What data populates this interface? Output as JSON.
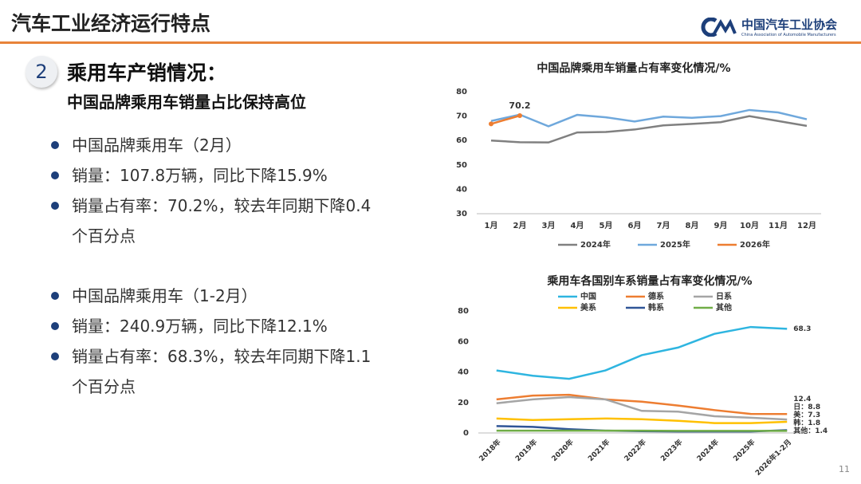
{
  "header": {
    "title": "汽车工业经济运行特点",
    "logo_name": "中国汽车工业协会",
    "logo_english": "China Association of Automobile Manufacturers"
  },
  "section": {
    "number": "2",
    "title": "乘用车产销情况：",
    "subtitle": "中国品牌乘用车销量占比保持高位"
  },
  "bullets": [
    [
      "中国品牌乘用车（2月）",
      "销量：107.8万辆，同比下降15.9%",
      "销量占有率：70.2%，较去年同期下降0.4个百分点"
    ],
    [
      "中国品牌乘用车（1-2月）",
      "销量：240.9万辆，同比下降12.1%",
      "销量占有率：68.3%，较去年同期下降1.1个百分点"
    ]
  ],
  "page_number": "11",
  "chart_data": [
    {
      "type": "line",
      "title": "中国品牌乘用车销量占有率变化情况/%",
      "categories": [
        "1月",
        "2月",
        "3月",
        "4月",
        "5月",
        "6月",
        "7月",
        "8月",
        "9月",
        "10月",
        "11月",
        "12月"
      ],
      "series": [
        {
          "name": "2024年",
          "color": "#808080",
          "values": [
            60,
            59.3,
            59.2,
            63.3,
            63.5,
            64.5,
            66.2,
            66.8,
            67.5,
            70,
            68,
            66
          ]
        },
        {
          "name": "2025年",
          "color": "#6fa8dc",
          "values": [
            68,
            70.6,
            65.8,
            70.5,
            69.5,
            67.8,
            69.8,
            69.3,
            70,
            72.5,
            71.5,
            68.7
          ]
        },
        {
          "name": "2026年",
          "color": "#ed7d31",
          "markers": true,
          "values": [
            66.8,
            70.2,
            null,
            null,
            null,
            null,
            null,
            null,
            null,
            null,
            null,
            null
          ],
          "value_labels": [
            null,
            "70.2",
            null,
            null,
            null,
            null,
            null,
            null,
            null,
            null,
            null,
            null
          ]
        }
      ],
      "ylim": [
        30,
        80
      ],
      "yticks": [
        30,
        40,
        50,
        60,
        70,
        80
      ],
      "legend": "bottom"
    },
    {
      "type": "line",
      "title": "乘用车各国别车系销量占有率变化情况/%",
      "categories": [
        "2018年",
        "2019年",
        "2020年",
        "2021年",
        "2022年",
        "2023年",
        "2024年",
        "2025年",
        "2026年1-2月"
      ],
      "series": [
        {
          "name": "中国",
          "color": "#2eb5e0",
          "values": [
            41,
            37.5,
            35.5,
            41,
            51,
            56,
            65,
            69.5,
            68.3
          ],
          "value_labels": [
            null,
            null,
            null,
            null,
            null,
            null,
            null,
            null,
            "68.3"
          ]
        },
        {
          "name": "德系",
          "color": "#ed7d31",
          "values": [
            22,
            24.5,
            25,
            22,
            20.5,
            18,
            15,
            12.5,
            12.4
          ],
          "value_labels": [
            null,
            null,
            null,
            null,
            null,
            null,
            null,
            null,
            "12.4"
          ]
        },
        {
          "name": "日系",
          "color": "#a5a5a5",
          "values": [
            19.5,
            22,
            23.5,
            22,
            14.5,
            14,
            11,
            10,
            8.8
          ],
          "value_labels": [
            null,
            null,
            null,
            null,
            null,
            null,
            null,
            null,
            "日：8.8"
          ]
        },
        {
          "name": "美系",
          "color": "#ffc000",
          "values": [
            9.5,
            8.5,
            9,
            9.5,
            9,
            8,
            6.5,
            6.5,
            7.3
          ],
          "value_labels": [
            null,
            null,
            null,
            null,
            null,
            null,
            null,
            null,
            "美：7.3"
          ]
        },
        {
          "name": "韩系",
          "color": "#2f5597",
          "values": [
            4.5,
            4,
            2.5,
            1.5,
            1.2,
            1,
            1,
            1,
            1.8
          ],
          "value_labels": [
            null,
            null,
            null,
            null,
            null,
            null,
            null,
            null,
            "韩：1.8"
          ]
        },
        {
          "name": "其他",
          "color": "#70ad47",
          "values": [
            1.5,
            1.5,
            1.5,
            1.5,
            1.5,
            1.4,
            1.4,
            1.4,
            1.4
          ],
          "value_labels": [
            null,
            null,
            null,
            null,
            null,
            null,
            null,
            null,
            "其他：1.4"
          ]
        }
      ],
      "ylim": [
        0,
        80
      ],
      "yticks": [
        0,
        20,
        40,
        60,
        80
      ],
      "legend": "top"
    }
  ]
}
